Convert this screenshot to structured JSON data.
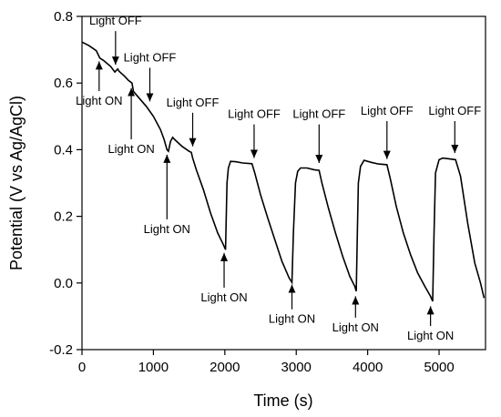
{
  "chart_data": {
    "type": "line",
    "title": "",
    "xlabel": "Time (s)",
    "ylabel": "Potential (V vs Ag/AgCl)",
    "xlim": [
      0,
      5650
    ],
    "ylim": [
      -0.2,
      0.8
    ],
    "xticks": [
      0,
      1000,
      2000,
      3000,
      4000,
      5000
    ],
    "yticks": [
      -0.2,
      0.0,
      0.2,
      0.4,
      0.6,
      0.8
    ],
    "ytick_labels": [
      "-0.2",
      "0.0",
      "0.2",
      "0.4",
      "0.6",
      "0.8"
    ],
    "grid": false,
    "series": [
      {
        "points": [
          [
            0,
            0.723
          ],
          [
            100,
            0.712
          ],
          [
            200,
            0.697
          ],
          [
            250,
            0.675
          ],
          [
            300,
            0.668
          ],
          [
            400,
            0.65
          ],
          [
            460,
            0.633
          ],
          [
            500,
            0.642
          ],
          [
            520,
            0.635
          ],
          [
            600,
            0.62
          ],
          [
            650,
            0.608
          ],
          [
            700,
            0.6
          ],
          [
            720,
            0.575
          ],
          [
            800,
            0.555
          ],
          [
            900,
            0.53
          ],
          [
            1000,
            0.5
          ],
          [
            1100,
            0.46
          ],
          [
            1150,
            0.43
          ],
          [
            1190,
            0.4
          ],
          [
            1210,
            0.395
          ],
          [
            1240,
            0.425
          ],
          [
            1270,
            0.437
          ],
          [
            1300,
            0.43
          ],
          [
            1400,
            0.41
          ],
          [
            1500,
            0.395
          ],
          [
            1530,
            0.392
          ],
          [
            1550,
            0.375
          ],
          [
            1600,
            0.34
          ],
          [
            1700,
            0.28
          ],
          [
            1800,
            0.21
          ],
          [
            1900,
            0.15
          ],
          [
            1980,
            0.115
          ],
          [
            2010,
            0.1
          ],
          [
            2030,
            0.3
          ],
          [
            2050,
            0.345
          ],
          [
            2080,
            0.365
          ],
          [
            2150,
            0.364
          ],
          [
            2250,
            0.36
          ],
          [
            2380,
            0.358
          ],
          [
            2420,
            0.33
          ],
          [
            2500,
            0.265
          ],
          [
            2600,
            0.195
          ],
          [
            2700,
            0.13
          ],
          [
            2800,
            0.065
          ],
          [
            2900,
            0.015
          ],
          [
            2940,
            0.002
          ],
          [
            2960,
            0.15
          ],
          [
            2990,
            0.3
          ],
          [
            3020,
            0.335
          ],
          [
            3060,
            0.345
          ],
          [
            3150,
            0.345
          ],
          [
            3250,
            0.34
          ],
          [
            3320,
            0.338
          ],
          [
            3360,
            0.3
          ],
          [
            3450,
            0.225
          ],
          [
            3550,
            0.15
          ],
          [
            3650,
            0.08
          ],
          [
            3750,
            0.02
          ],
          [
            3820,
            -0.01
          ],
          [
            3840,
            -0.025
          ],
          [
            3855,
            0.15
          ],
          [
            3870,
            0.3
          ],
          [
            3900,
            0.35
          ],
          [
            3950,
            0.368
          ],
          [
            4050,
            0.362
          ],
          [
            4150,
            0.357
          ],
          [
            4270,
            0.355
          ],
          [
            4320,
            0.31
          ],
          [
            4400,
            0.23
          ],
          [
            4500,
            0.15
          ],
          [
            4600,
            0.085
          ],
          [
            4700,
            0.03
          ],
          [
            4800,
            -0.01
          ],
          [
            4880,
            -0.04
          ],
          [
            4910,
            -0.055
          ],
          [
            4930,
            0.15
          ],
          [
            4950,
            0.33
          ],
          [
            5000,
            0.37
          ],
          [
            5050,
            0.375
          ],
          [
            5150,
            0.372
          ],
          [
            5230,
            0.37
          ],
          [
            5300,
            0.32
          ],
          [
            5400,
            0.18
          ],
          [
            5500,
            0.06
          ],
          [
            5580,
            0.0
          ],
          [
            5630,
            -0.045
          ]
        ]
      }
    ],
    "annotations": [
      {
        "text": "Light OFF",
        "x": 470,
        "y_arrow_end": 0.655,
        "y_text": 0.775,
        "text_side": "above"
      },
      {
        "text": "Light OFF",
        "x": 950,
        "y_arrow_end": 0.545,
        "y_text": 0.665,
        "text_side": "above"
      },
      {
        "text": "Light OFF",
        "x": 1550,
        "y_arrow_end": 0.41,
        "y_text": 0.53,
        "text_side": "above"
      },
      {
        "text": "Light OFF",
        "x": 2410,
        "y_arrow_end": 0.375,
        "y_text": 0.495,
        "text_side": "above"
      },
      {
        "text": "Light OFF",
        "x": 3320,
        "y_arrow_end": 0.36,
        "y_text": 0.495,
        "text_side": "above"
      },
      {
        "text": "Light OFF",
        "x": 4270,
        "y_arrow_end": 0.372,
        "y_text": 0.505,
        "text_side": "above"
      },
      {
        "text": "Light OFF",
        "x": 5220,
        "y_arrow_end": 0.39,
        "y_text": 0.505,
        "text_side": "above"
      },
      {
        "text": "Light ON",
        "x": 240,
        "y_arrow_end": 0.665,
        "y_text": 0.535,
        "text_side": "below"
      },
      {
        "text": "Light ON",
        "x": 690,
        "y_arrow_end": 0.585,
        "y_text": 0.39,
        "text_side": "below"
      },
      {
        "text": "Light ON",
        "x": 1190,
        "y_arrow_end": 0.385,
        "y_text": 0.15,
        "text_side": "below"
      },
      {
        "text": "Light ON",
        "x": 1990,
        "y_arrow_end": 0.09,
        "y_text": -0.055,
        "text_side": "below"
      },
      {
        "text": "Light ON",
        "x": 2940,
        "y_arrow_end": -0.005,
        "y_text": -0.12,
        "text_side": "below"
      },
      {
        "text": "Light ON",
        "x": 3830,
        "y_arrow_end": -0.04,
        "y_text": -0.145,
        "text_side": "below"
      },
      {
        "text": "Light ON",
        "x": 4880,
        "y_arrow_end": -0.07,
        "y_text": -0.17,
        "text_side": "below"
      }
    ]
  }
}
